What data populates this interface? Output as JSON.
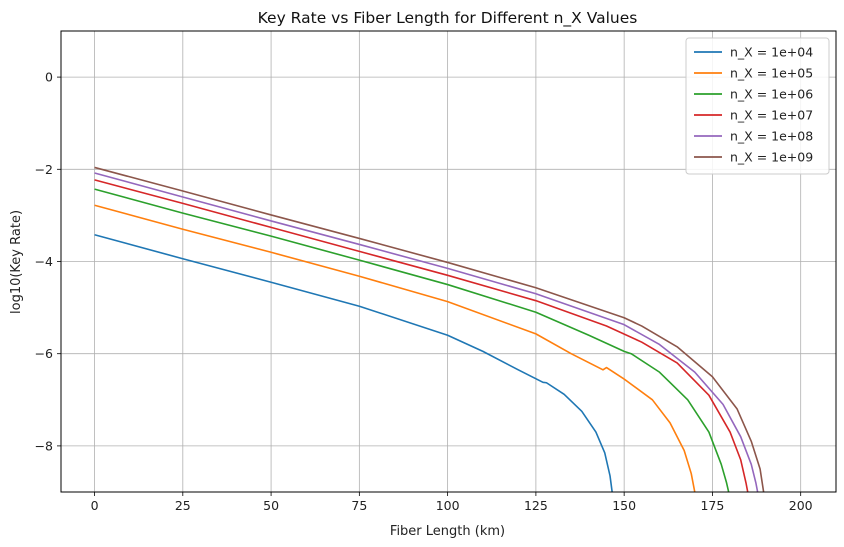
{
  "chart_data": {
    "type": "line",
    "title": "Key Rate vs Fiber Length for Different n_X Values",
    "xlabel": "Fiber Length (km)",
    "ylabel": "log10(Key Rate)",
    "xlim": [
      -9.5,
      210
    ],
    "ylim": [
      -9,
      1
    ],
    "xticks": [
      0,
      25,
      50,
      75,
      100,
      125,
      150,
      175,
      200
    ],
    "yticks": [
      -8,
      -6,
      -4,
      -2,
      0
    ],
    "grid": true,
    "legend_position": "top-right",
    "series": [
      {
        "name": "n_X = 1e+04",
        "color": "#1f77b4",
        "points": [
          [
            0,
            -3.42
          ],
          [
            25,
            -3.94
          ],
          [
            50,
            -4.45
          ],
          [
            75,
            -4.97
          ],
          [
            100,
            -5.6
          ],
          [
            110,
            -5.95
          ],
          [
            120,
            -6.35
          ],
          [
            127,
            -6.62
          ],
          [
            128,
            -6.63
          ],
          [
            133,
            -6.88
          ],
          [
            138,
            -7.25
          ],
          [
            142,
            -7.7
          ],
          [
            144.5,
            -8.15
          ],
          [
            146,
            -8.65
          ],
          [
            146.6,
            -9.0
          ]
        ]
      },
      {
        "name": "n_X = 1e+05",
        "color": "#ff7f0e",
        "points": [
          [
            0,
            -2.78
          ],
          [
            25,
            -3.3
          ],
          [
            50,
            -3.8
          ],
          [
            75,
            -4.32
          ],
          [
            100,
            -4.87
          ],
          [
            125,
            -5.57
          ],
          [
            135,
            -6.0
          ],
          [
            144,
            -6.35
          ],
          [
            145,
            -6.3
          ],
          [
            150,
            -6.55
          ],
          [
            158,
            -7.0
          ],
          [
            163,
            -7.5
          ],
          [
            167,
            -8.1
          ],
          [
            169,
            -8.6
          ],
          [
            170,
            -9.0
          ]
        ]
      },
      {
        "name": "n_X = 1e+06",
        "color": "#2ca02c",
        "points": [
          [
            0,
            -2.43
          ],
          [
            25,
            -2.95
          ],
          [
            50,
            -3.45
          ],
          [
            75,
            -3.97
          ],
          [
            100,
            -4.5
          ],
          [
            125,
            -5.1
          ],
          [
            140,
            -5.6
          ],
          [
            150,
            -5.95
          ],
          [
            152,
            -6.0
          ],
          [
            160,
            -6.4
          ],
          [
            168,
            -7.0
          ],
          [
            174,
            -7.7
          ],
          [
            177.5,
            -8.4
          ],
          [
            179,
            -8.8
          ],
          [
            179.6,
            -9.0
          ]
        ]
      },
      {
        "name": "n_X = 1e+07",
        "color": "#d62728",
        "points": [
          [
            0,
            -2.23
          ],
          [
            25,
            -2.74
          ],
          [
            50,
            -3.26
          ],
          [
            75,
            -3.78
          ],
          [
            100,
            -4.3
          ],
          [
            125,
            -4.85
          ],
          [
            145,
            -5.4
          ],
          [
            155,
            -5.75
          ],
          [
            165,
            -6.2
          ],
          [
            174,
            -6.9
          ],
          [
            180,
            -7.7
          ],
          [
            183,
            -8.3
          ],
          [
            184.5,
            -8.8
          ],
          [
            185,
            -9.0
          ]
        ]
      },
      {
        "name": "n_X = 1e+08",
        "color": "#9467bd",
        "points": [
          [
            0,
            -2.08
          ],
          [
            25,
            -2.6
          ],
          [
            50,
            -3.12
          ],
          [
            75,
            -3.63
          ],
          [
            100,
            -4.15
          ],
          [
            125,
            -4.7
          ],
          [
            150,
            -5.37
          ],
          [
            160,
            -5.8
          ],
          [
            170,
            -6.4
          ],
          [
            178,
            -7.1
          ],
          [
            183,
            -7.8
          ],
          [
            186,
            -8.4
          ],
          [
            187.3,
            -8.8
          ],
          [
            187.8,
            -9.0
          ]
        ]
      },
      {
        "name": "n_X = 1e+09",
        "color": "#8c564b",
        "points": [
          [
            0,
            -1.96
          ],
          [
            25,
            -2.47
          ],
          [
            50,
            -2.99
          ],
          [
            75,
            -3.5
          ],
          [
            100,
            -4.02
          ],
          [
            125,
            -4.57
          ],
          [
            150,
            -5.22
          ],
          [
            155,
            -5.4
          ],
          [
            165,
            -5.85
          ],
          [
            175,
            -6.5
          ],
          [
            182,
            -7.2
          ],
          [
            186,
            -7.9
          ],
          [
            188.5,
            -8.5
          ],
          [
            189.5,
            -9.0
          ]
        ]
      }
    ]
  }
}
